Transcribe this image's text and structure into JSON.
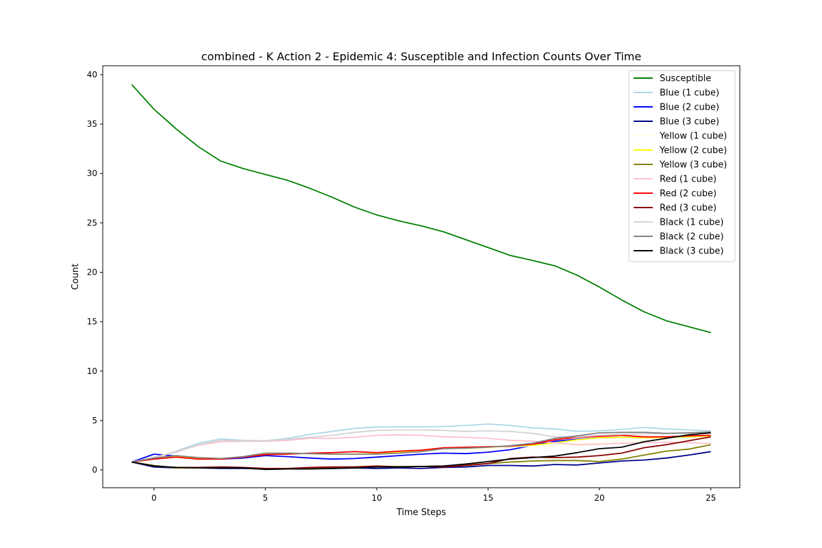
{
  "chart_data": {
    "type": "line",
    "title": "combined - K Action 2 - Epidemic 4: Susceptible and Infection Counts Over Time",
    "xlabel": "Time Steps",
    "ylabel": "Count",
    "xlim": [
      -2.3,
      26.3
    ],
    "ylim": [
      -1.8,
      40.9
    ],
    "xticks": [
      0,
      5,
      10,
      15,
      20,
      25
    ],
    "yticks": [
      0,
      5,
      10,
      15,
      20,
      25,
      30,
      35,
      40
    ],
    "grid": false,
    "legend_position": "top-right",
    "x": [
      -1,
      0,
      1,
      2,
      3,
      4,
      5,
      6,
      7,
      8,
      9,
      10,
      11,
      12,
      13,
      14,
      15,
      16,
      17,
      18,
      19,
      20,
      21,
      22,
      23,
      24,
      25
    ],
    "series": [
      {
        "name": "Susceptible",
        "color": "#008000",
        "values": [
          39.0,
          36.5,
          34.5,
          32.7,
          31.25,
          30.5,
          29.9,
          29.3,
          28.5,
          27.6,
          26.6,
          25.8,
          25.2,
          24.7,
          24.1,
          23.3,
          22.5,
          21.7,
          21.2,
          20.65,
          19.7,
          18.5,
          17.2,
          16.0,
          15.1,
          14.5,
          13.9
        ]
      },
      {
        "name": "Blue (1 cube)",
        "color": "#add8e6",
        "values": [
          0.8,
          1.2,
          1.9,
          2.7,
          3.15,
          3.0,
          2.95,
          3.2,
          3.6,
          3.9,
          4.2,
          4.35,
          4.35,
          4.35,
          4.4,
          4.5,
          4.65,
          4.5,
          4.25,
          4.15,
          3.9,
          3.95,
          4.1,
          4.3,
          4.15,
          4.05,
          3.95
        ]
      },
      {
        "name": "Blue (2 cube)",
        "color": "#0000ff",
        "values": [
          0.8,
          1.6,
          1.4,
          1.2,
          1.1,
          1.2,
          1.45,
          1.35,
          1.2,
          1.1,
          1.15,
          1.3,
          1.45,
          1.6,
          1.7,
          1.65,
          1.8,
          2.05,
          2.5,
          2.9,
          3.1,
          3.25,
          3.3,
          3.25,
          3.3,
          3.35,
          3.45
        ]
      },
      {
        "name": "Blue (3 cube)",
        "color": "#00008b",
        "values": [
          0.8,
          0.3,
          0.2,
          0.2,
          0.15,
          0.15,
          0.1,
          0.1,
          0.15,
          0.15,
          0.2,
          0.15,
          0.2,
          0.15,
          0.25,
          0.3,
          0.45,
          0.45,
          0.4,
          0.55,
          0.5,
          0.7,
          0.9,
          1.0,
          1.2,
          1.5,
          1.85
        ]
      },
      {
        "name": "Yellow (1 cube)",
        "color": "#ffffe0",
        "values": [
          0.8,
          1.1,
          1.3,
          1.2,
          1.2,
          1.3,
          1.6,
          1.65,
          1.6,
          1.55,
          1.55,
          1.6,
          1.7,
          1.8,
          1.9,
          2.0,
          2.2,
          2.3,
          2.45,
          2.55,
          2.65,
          2.75,
          2.85,
          2.95,
          3.05,
          3.1,
          3.2
        ]
      },
      {
        "name": "Yellow (2 cube)",
        "color": "#ffff00",
        "values": [
          0.8,
          1.2,
          1.35,
          1.2,
          1.15,
          1.3,
          1.6,
          1.7,
          1.65,
          1.6,
          1.6,
          1.65,
          1.8,
          2.0,
          2.2,
          2.3,
          2.35,
          2.4,
          2.5,
          2.75,
          3.05,
          3.25,
          3.3,
          3.25,
          3.3,
          3.35,
          3.45
        ]
      },
      {
        "name": "Yellow (3 cube)",
        "color": "#808000",
        "values": [
          0.8,
          0.45,
          0.2,
          0.2,
          0.2,
          0.2,
          0.15,
          0.15,
          0.2,
          0.25,
          0.3,
          0.35,
          0.35,
          0.35,
          0.4,
          0.5,
          0.65,
          0.8,
          0.9,
          0.95,
          0.95,
          0.85,
          1.1,
          1.5,
          1.9,
          2.1,
          2.55
        ]
      },
      {
        "name": "Red (1 cube)",
        "color": "#ffc0cb",
        "values": [
          0.7,
          1.2,
          1.85,
          2.5,
          2.85,
          2.9,
          2.9,
          3.0,
          3.2,
          3.2,
          3.3,
          3.5,
          3.55,
          3.5,
          3.35,
          3.3,
          3.2,
          3.0,
          2.9,
          2.75,
          2.55,
          2.6,
          2.7,
          2.75,
          2.8,
          2.75,
          2.7
        ]
      },
      {
        "name": "Red (2 cube)",
        "color": "#ff0000",
        "values": [
          0.8,
          1.1,
          1.3,
          1.1,
          1.1,
          1.3,
          1.55,
          1.6,
          1.7,
          1.75,
          1.85,
          1.75,
          1.9,
          2.0,
          2.25,
          2.3,
          2.35,
          2.4,
          2.6,
          3.05,
          3.3,
          3.4,
          3.5,
          3.35,
          3.35,
          3.45,
          3.5
        ]
      },
      {
        "name": "Red (3 cube)",
        "color": "#8b0000",
        "values": [
          0.8,
          0.4,
          0.25,
          0.25,
          0.3,
          0.25,
          0.15,
          0.15,
          0.25,
          0.3,
          0.3,
          0.4,
          0.3,
          0.35,
          0.3,
          0.45,
          0.65,
          1.15,
          1.3,
          1.25,
          1.3,
          1.45,
          1.7,
          2.25,
          2.55,
          2.95,
          3.35
        ]
      },
      {
        "name": "Black (1 cube)",
        "color": "#d3d3d3",
        "values": [
          0.8,
          1.3,
          1.8,
          2.55,
          3.0,
          2.95,
          2.95,
          3.1,
          3.3,
          3.5,
          3.8,
          4.0,
          4.05,
          4.05,
          4.0,
          3.9,
          3.95,
          3.9,
          3.7,
          3.35,
          3.35,
          3.5,
          3.6,
          3.65,
          3.7,
          3.7,
          3.75
        ]
      },
      {
        "name": "Black (2 cube)",
        "color": "#808080",
        "values": [
          0.8,
          1.2,
          1.45,
          1.25,
          1.15,
          1.35,
          1.7,
          1.7,
          1.65,
          1.6,
          1.6,
          1.6,
          1.7,
          1.85,
          2.15,
          2.2,
          2.3,
          2.45,
          2.7,
          3.2,
          3.45,
          3.75,
          3.8,
          3.8,
          3.7,
          3.75,
          3.85
        ]
      },
      {
        "name": "Black (3 cube)",
        "color": "#000000",
        "values": [
          0.8,
          0.4,
          0.25,
          0.2,
          0.2,
          0.2,
          0.05,
          0.1,
          0.1,
          0.15,
          0.2,
          0.3,
          0.3,
          0.35,
          0.4,
          0.6,
          0.85,
          1.1,
          1.25,
          1.4,
          1.75,
          2.15,
          2.3,
          2.85,
          3.2,
          3.55,
          3.75
        ]
      }
    ]
  }
}
